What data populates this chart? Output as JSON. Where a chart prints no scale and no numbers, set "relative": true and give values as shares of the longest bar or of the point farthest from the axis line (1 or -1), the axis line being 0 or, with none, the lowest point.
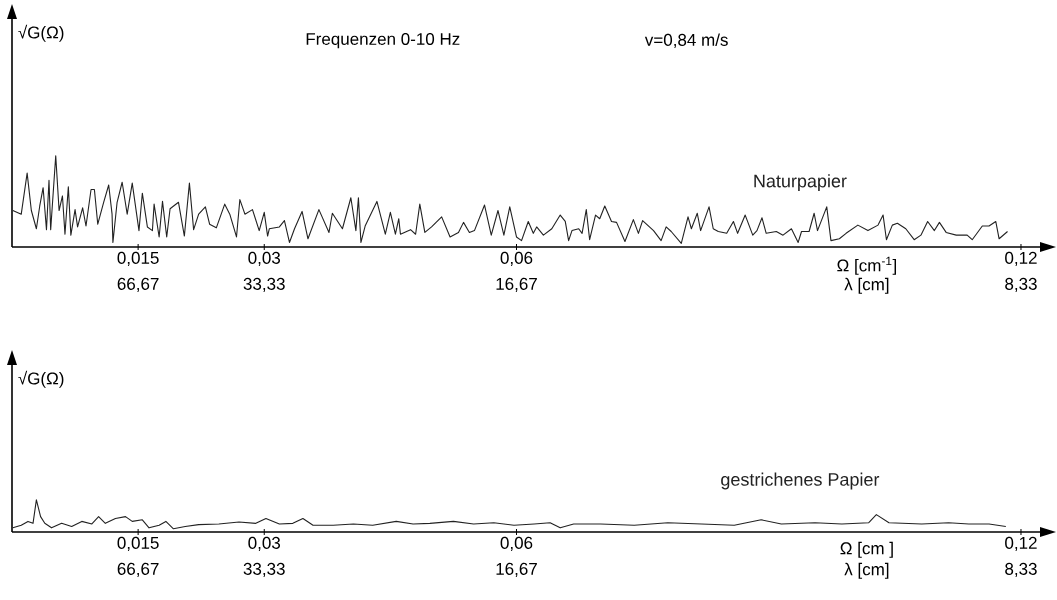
{
  "chart_data": [
    {
      "type": "line",
      "relative": true,
      "title": "Frequenzen 0-10 Hz",
      "subtitle": "v=0,84 m/s",
      "ylabel": "√G(Ω)",
      "xlabel": "Ω [cm$^{-1}$]",
      "xlim": [
        0,
        0.1225
      ],
      "xticks": [
        {
          "value": 0.015,
          "label": "0,015"
        },
        {
          "value": 0.03,
          "label": "0,03"
        },
        {
          "value": 0.06,
          "label": "0,06"
        },
        {
          "value": 0.12,
          "label": "0,12"
        }
      ],
      "annotations": [
        "66,67",
        "33,33",
        "16,67",
        "8,33",
        "λ [cm]"
      ],
      "series": [
        {
          "name": "Naturpapier",
          "color": "#222222",
          "x": [
            0.0001,
            0.0011,
            0.0018,
            0.0023,
            0.0029,
            0.0033,
            0.0037,
            0.0041,
            0.0044,
            0.0046,
            0.0052,
            0.0056,
            0.006,
            0.0063,
            0.0067,
            0.007,
            0.0075,
            0.0078,
            0.0084,
            0.0088,
            0.0094,
            0.0098,
            0.0102,
            0.0109,
            0.0115,
            0.0119,
            0.012,
            0.0125,
            0.0131,
            0.0137,
            0.0143,
            0.0151,
            0.0155,
            0.0161,
            0.0167,
            0.0169,
            0.0175,
            0.0179,
            0.0184,
            0.0188,
            0.0198,
            0.0205,
            0.0211,
            0.0216,
            0.0222,
            0.023,
            0.0235,
            0.0243,
            0.0253,
            0.0259,
            0.0267,
            0.0271,
            0.0277,
            0.0286,
            0.0294,
            0.03,
            0.0304,
            0.0306,
            0.0318,
            0.0324,
            0.033,
            0.0336,
            0.0345,
            0.0352,
            0.0365,
            0.0377,
            0.0381,
            0.0393,
            0.0403,
            0.0409,
            0.0412,
            0.0415,
            0.042,
            0.0434,
            0.0444,
            0.045,
            0.0456,
            0.046,
            0.0462,
            0.0474,
            0.048,
            0.0485,
            0.0491,
            0.0499,
            0.0511,
            0.0521,
            0.0531,
            0.0537,
            0.0544,
            0.055,
            0.0562,
            0.057,
            0.0578,
            0.0585,
            0.0592,
            0.06,
            0.0606,
            0.0614,
            0.062,
            0.0624,
            0.0632,
            0.0642,
            0.0652,
            0.0658,
            0.0662,
            0.0666,
            0.0674,
            0.0678,
            0.0683,
            0.0687,
            0.0694,
            0.0699,
            0.0705,
            0.0713,
            0.0719,
            0.0729,
            0.0739,
            0.0745,
            0.075,
            0.0763,
            0.0772,
            0.0778,
            0.0784,
            0.0796,
            0.0804,
            0.0808,
            0.0815,
            0.0819,
            0.0829,
            0.0834,
            0.084,
            0.085,
            0.0858,
            0.0863,
            0.0872,
            0.0881,
            0.0886,
            0.0892,
            0.0897,
            0.0909,
            0.0917,
            0.0927,
            0.0935,
            0.0939,
            0.0948,
            0.0954,
            0.0958,
            0.0969,
            0.0974,
            0.0984,
            0.0992,
            0.1006,
            0.1018,
            0.103,
            0.1036,
            0.104,
            0.1047,
            0.1053,
            0.1063,
            0.1073,
            0.1081,
            0.1089,
            0.1097,
            0.1103,
            0.1111,
            0.1123,
            0.1136,
            0.1142,
            0.1154,
            0.1162,
            0.117,
            0.1174,
            0.1184
          ],
          "values": [
            0.4,
            0.36,
            0.81,
            0.4,
            0.2,
            0.45,
            0.65,
            0.19,
            0.73,
            0.19,
            1.0,
            0.4,
            0.56,
            0.14,
            0.66,
            0.13,
            0.41,
            0.22,
            0.43,
            0.23,
            0.63,
            0.63,
            0.25,
            0.49,
            0.68,
            0.36,
            0.05,
            0.49,
            0.71,
            0.36,
            0.7,
            0.18,
            0.59,
            0.22,
            0.18,
            0.47,
            0.11,
            0.5,
            0.11,
            0.42,
            0.49,
            0.12,
            0.7,
            0.19,
            0.36,
            0.44,
            0.25,
            0.21,
            0.47,
            0.36,
            0.11,
            0.52,
            0.36,
            0.41,
            0.18,
            0.38,
            0.12,
            0.2,
            0.22,
            0.29,
            0.05,
            0.2,
            0.39,
            0.09,
            0.41,
            0.16,
            0.37,
            0.2,
            0.54,
            0.18,
            0.54,
            0.05,
            0.23,
            0.5,
            0.14,
            0.38,
            0.14,
            0.31,
            0.14,
            0.19,
            0.14,
            0.47,
            0.16,
            0.22,
            0.33,
            0.11,
            0.16,
            0.27,
            0.16,
            0.18,
            0.46,
            0.13,
            0.4,
            0.13,
            0.44,
            0.11,
            0.07,
            0.28,
            0.15,
            0.22,
            0.13,
            0.2,
            0.35,
            0.28,
            0.07,
            0.18,
            0.2,
            0.15,
            0.41,
            0.08,
            0.35,
            0.31,
            0.45,
            0.28,
            0.27,
            0.06,
            0.3,
            0.15,
            0.29,
            0.18,
            0.07,
            0.22,
            0.17,
            0.04,
            0.33,
            0.2,
            0.37,
            0.18,
            0.44,
            0.2,
            0.17,
            0.15,
            0.28,
            0.15,
            0.35,
            0.13,
            0.18,
            0.32,
            0.15,
            0.17,
            0.13,
            0.2,
            0.05,
            0.17,
            0.17,
            0.37,
            0.18,
            0.44,
            0.07,
            0.09,
            0.15,
            0.24,
            0.18,
            0.24,
            0.35,
            0.08,
            0.24,
            0.26,
            0.2,
            0.08,
            0.13,
            0.28,
            0.18,
            0.27,
            0.16,
            0.13,
            0.13,
            0.08,
            0.23,
            0.23,
            0.28,
            0.09,
            0.17
          ]
        }
      ]
    },
    {
      "type": "line",
      "relative": true,
      "ylabel": "√G(Ω)",
      "xlabel": "Ω [cm ]",
      "xlim": [
        0,
        0.1225
      ],
      "xticks": [
        {
          "value": 0.015,
          "label": "0,015"
        },
        {
          "value": 0.03,
          "label": "0,03"
        },
        {
          "value": 0.06,
          "label": "0,06"
        },
        {
          "value": 0.12,
          "label": "0,12"
        }
      ],
      "annotations": [
        "66,67",
        "33,33",
        "16,67",
        "8,33",
        "λ [cm]"
      ],
      "series": [
        {
          "name": "gestrichenes Papier",
          "color": "#222222",
          "x": [
            0.0001,
            0.0011,
            0.0019,
            0.0025,
            0.0029,
            0.0034,
            0.0039,
            0.0047,
            0.0059,
            0.0071,
            0.0083,
            0.0095,
            0.0103,
            0.0111,
            0.0123,
            0.0135,
            0.0143,
            0.0155,
            0.0163,
            0.0175,
            0.0183,
            0.0192,
            0.0206,
            0.0222,
            0.0246,
            0.027,
            0.029,
            0.0302,
            0.0318,
            0.0334,
            0.0346,
            0.0358,
            0.0382,
            0.0406,
            0.0429,
            0.0457,
            0.0477,
            0.0497,
            0.0525,
            0.0549,
            0.0573,
            0.0597,
            0.0621,
            0.064,
            0.0652,
            0.0668,
            0.07,
            0.074,
            0.078,
            0.082,
            0.0859,
            0.0891,
            0.0915,
            0.0955,
            0.0987,
            0.1019,
            0.1028,
            0.1043,
            0.1082,
            0.1114,
            0.1138,
            0.1162,
            0.1182
          ],
          "values": [
            0.13,
            0.21,
            0.33,
            0.27,
            1.0,
            0.48,
            0.27,
            0.13,
            0.27,
            0.17,
            0.33,
            0.25,
            0.48,
            0.27,
            0.42,
            0.48,
            0.33,
            0.38,
            0.13,
            0.21,
            0.33,
            0.1,
            0.17,
            0.23,
            0.25,
            0.31,
            0.27,
            0.42,
            0.25,
            0.27,
            0.42,
            0.21,
            0.21,
            0.25,
            0.21,
            0.33,
            0.25,
            0.27,
            0.33,
            0.25,
            0.29,
            0.21,
            0.25,
            0.29,
            0.13,
            0.25,
            0.25,
            0.21,
            0.29,
            0.25,
            0.21,
            0.38,
            0.25,
            0.29,
            0.25,
            0.29,
            0.54,
            0.29,
            0.25,
            0.29,
            0.25,
            0.25,
            0.17
          ]
        }
      ]
    }
  ]
}
